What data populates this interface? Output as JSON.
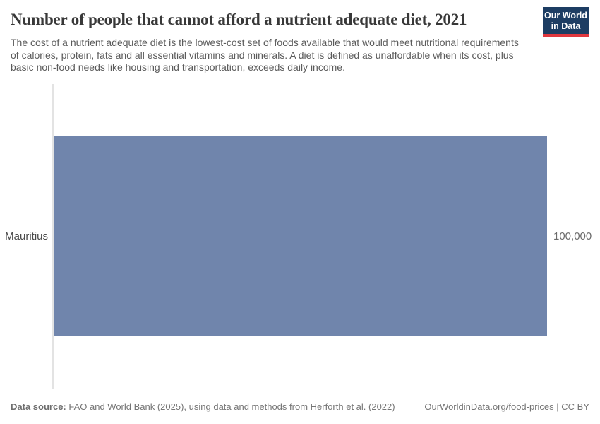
{
  "header": {
    "title": "Number of people that cannot afford a nutrient adequate diet, 2021",
    "subtitle": "The cost of a nutrient adequate diet is the lowest-cost set of foods available that would meet nutritional requirements of calories, protein, fats and all essential vitamins and minerals. A diet is defined as unaffordable when its cost, plus basic non-food needs like housing and transportation, exceeds daily income.",
    "logo": {
      "line1": "Our World",
      "line2": "in Data",
      "bg_color": "#1d3d63",
      "accent_color": "#e0373e"
    }
  },
  "chart_data": {
    "type": "bar",
    "orientation": "horizontal",
    "title": "Number of people that cannot afford a nutrient adequate diet, 2021",
    "categories": [
      "Mauritius"
    ],
    "values": [
      100000
    ],
    "value_labels": [
      "100,000"
    ],
    "xlabel": "",
    "ylabel": "",
    "xlim": [
      0,
      100000
    ],
    "grid": false,
    "legend": "none",
    "bar_color": "#7085ac",
    "axis_line_color": "#e3e3e3"
  },
  "footer": {
    "datasource_label": "Data source:",
    "datasource_text": " FAO and World Bank (2025), using data and methods from Herforth et al. (2022)",
    "link_text": "OurWorldinData.org/food-prices | CC BY"
  }
}
